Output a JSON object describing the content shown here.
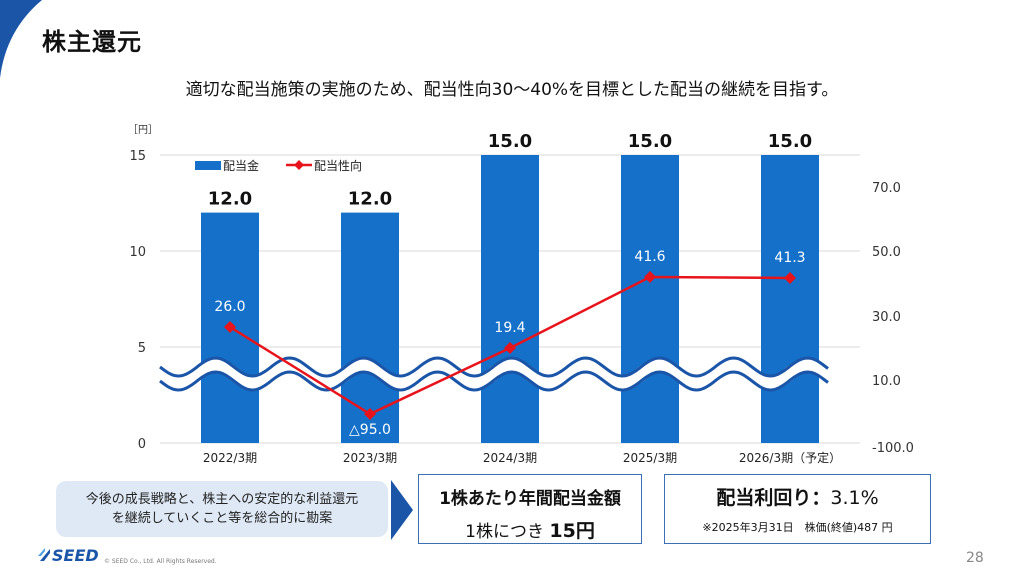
{
  "header": {
    "title": "株主還元"
  },
  "subtitle": "適切な配当施策の実施のため、配当性向30〜40%を目標とした配当の継続を目指す。",
  "colors": {
    "bar": "#1470c8",
    "line": "#e8141c",
    "accent": "#1a55a8"
  },
  "chart_data": {
    "type": "bar",
    "categories": [
      "2022/3期",
      "2023/3期",
      "2024/3期",
      "2025/3期",
      "2026/3期（予定）"
    ],
    "series": [
      {
        "name": "配当金",
        "type": "bar",
        "axis": "left",
        "values": [
          12.0,
          12.0,
          15.0,
          15.0,
          15.0
        ],
        "labels": [
          "12.0",
          "12.0",
          "15.0",
          "15.0",
          "15.0"
        ]
      },
      {
        "name": "配当性向",
        "type": "line",
        "axis": "right",
        "values": [
          26.0,
          -95.0,
          19.4,
          41.6,
          41.3
        ],
        "labels": [
          "26.0",
          "△95.0",
          "19.4",
          "41.6",
          "41.3"
        ]
      }
    ],
    "left_axis": {
      "unit": "［円］",
      "ticks": [
        "0",
        "5",
        "10",
        "15"
      ],
      "ylim": [
        0,
        15
      ]
    },
    "right_axis": {
      "ticks": [
        "-100.0",
        "10.0",
        "30.0",
        "50.0",
        "70.0"
      ],
      "broken": true
    },
    "legend": {
      "position": "top-left",
      "items": [
        "配当金",
        "配当性向"
      ]
    },
    "grid": true
  },
  "callout": {
    "line1": "今後の成長戦略と、株主への安定的な利益還元",
    "line2": "を継続していくこと等を総合的に勘案"
  },
  "box1": {
    "line1": "1株あたり年間配当金額",
    "prefix": "1株につき ",
    "amount": "15円"
  },
  "box2": {
    "label": "配当利回り：",
    "value": "3.1%",
    "note": "※2025年3月31日　株価(終値)487 円"
  },
  "footer": {
    "logo": "SEED",
    "copyright": "© SEED Co., Ltd. All Rights Reserved.",
    "page": "28"
  }
}
